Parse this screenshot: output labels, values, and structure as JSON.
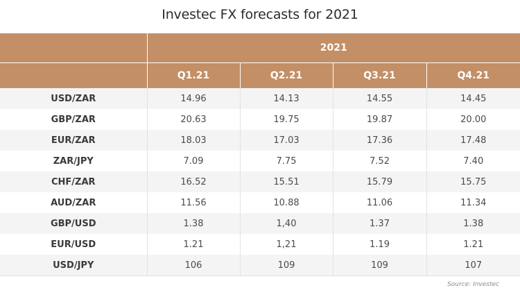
{
  "chart_data": {
    "type": "table",
    "title": "Investec FX forecasts for 2021",
    "group_header": "2021",
    "columns": [
      "Q1.21",
      "Q2.21",
      "Q3.21",
      "Q4.21"
    ],
    "rows": [
      {
        "pair": "USD/ZAR",
        "values": [
          "14.96",
          "14.13",
          "14.55",
          "14.45"
        ]
      },
      {
        "pair": "GBP/ZAR",
        "values": [
          "20.63",
          "19.75",
          "19.87",
          "20.00"
        ]
      },
      {
        "pair": "EUR/ZAR",
        "values": [
          "18.03",
          "17.03",
          "17.36",
          "17.48"
        ]
      },
      {
        "pair": "ZAR/JPY",
        "values": [
          "7.09",
          "7.75",
          "7.52",
          "7.40"
        ]
      },
      {
        "pair": "CHF/ZAR",
        "values": [
          "16.52",
          "15.51",
          "15.79",
          "15.75"
        ]
      },
      {
        "pair": "AUD/ZAR",
        "values": [
          "11.56",
          "10.88",
          "11.06",
          "11.34"
        ]
      },
      {
        "pair": "GBP/USD",
        "values": [
          "1.38",
          "1,40",
          "1.37",
          "1.38"
        ]
      },
      {
        "pair": "EUR/USD",
        "values": [
          "1.21",
          "1,21",
          "1.19",
          "1.21"
        ]
      },
      {
        "pair": "USD/JPY",
        "values": [
          "106",
          "109",
          "109",
          "107"
        ]
      }
    ],
    "source": "Source: Investec",
    "colors": {
      "header_bg": "#c38f66",
      "header_text": "#ffffff",
      "row_alt_bg": "#f4f4f4"
    }
  }
}
